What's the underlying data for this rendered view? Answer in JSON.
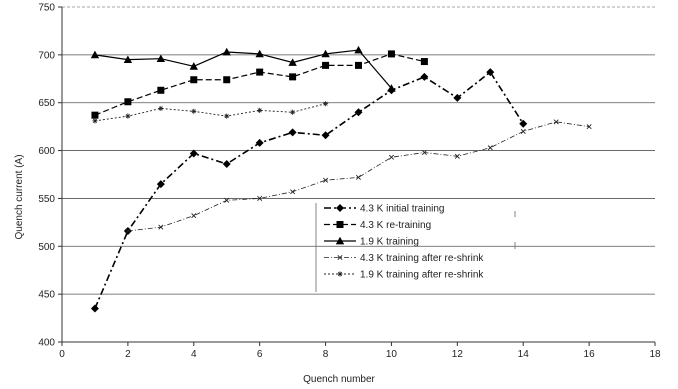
{
  "chart_data": {
    "type": "line",
    "title": "",
    "xlabel": "Quench number",
    "ylabel": "Quench current (A)",
    "xlim": [
      0,
      18
    ],
    "ylim": [
      400,
      750
    ],
    "xticks": [
      0,
      2,
      4,
      6,
      8,
      10,
      12,
      14,
      16,
      18
    ],
    "yticks": [
      400,
      450,
      500,
      550,
      600,
      650,
      700,
      750
    ],
    "grid": "horizontal",
    "legend_position": "bottom-center",
    "series": [
      {
        "name": "4.3 K initial training",
        "line": "dash-dot",
        "marker": "diamond",
        "x": [
          1,
          2,
          3,
          4,
          5,
          6,
          7,
          8,
          9,
          10,
          11,
          12,
          13,
          14
        ],
        "y": [
          435,
          516,
          565,
          597,
          586,
          608,
          619,
          616,
          640,
          663,
          677,
          655,
          682,
          628
        ]
      },
      {
        "name": "4.3 K re-training",
        "line": "dashed",
        "marker": "square",
        "x": [
          1,
          2,
          3,
          4,
          5,
          6,
          7,
          8,
          9,
          10,
          11
        ],
        "y": [
          637,
          651,
          663,
          674,
          674,
          682,
          677,
          689,
          689,
          701,
          693
        ]
      },
      {
        "name": "1.9 K training",
        "line": "solid",
        "marker": "triangle",
        "x": [
          1,
          2,
          3,
          4,
          5,
          6,
          7,
          8,
          9,
          10
        ],
        "y": [
          700,
          695,
          696,
          688,
          703,
          701,
          692,
          701,
          705,
          665
        ]
      },
      {
        "name": "4.3 K training after re-shrink",
        "line": "dash-dot-thin",
        "marker": "small-cross",
        "x": [
          2,
          3,
          4,
          5,
          6,
          7,
          8,
          9,
          10,
          11,
          12,
          13,
          14,
          15,
          16
        ],
        "y": [
          516,
          520,
          532,
          548,
          550,
          557,
          569,
          572,
          593,
          598,
          594,
          603,
          620,
          630,
          625
        ]
      },
      {
        "name": "1.9 K training after re-shrink",
        "line": "dotted",
        "marker": "star",
        "x": [
          1,
          2,
          3,
          4,
          5,
          6,
          7,
          8
        ],
        "y": [
          631,
          636,
          644,
          641,
          636,
          642,
          640,
          649
        ]
      }
    ]
  }
}
